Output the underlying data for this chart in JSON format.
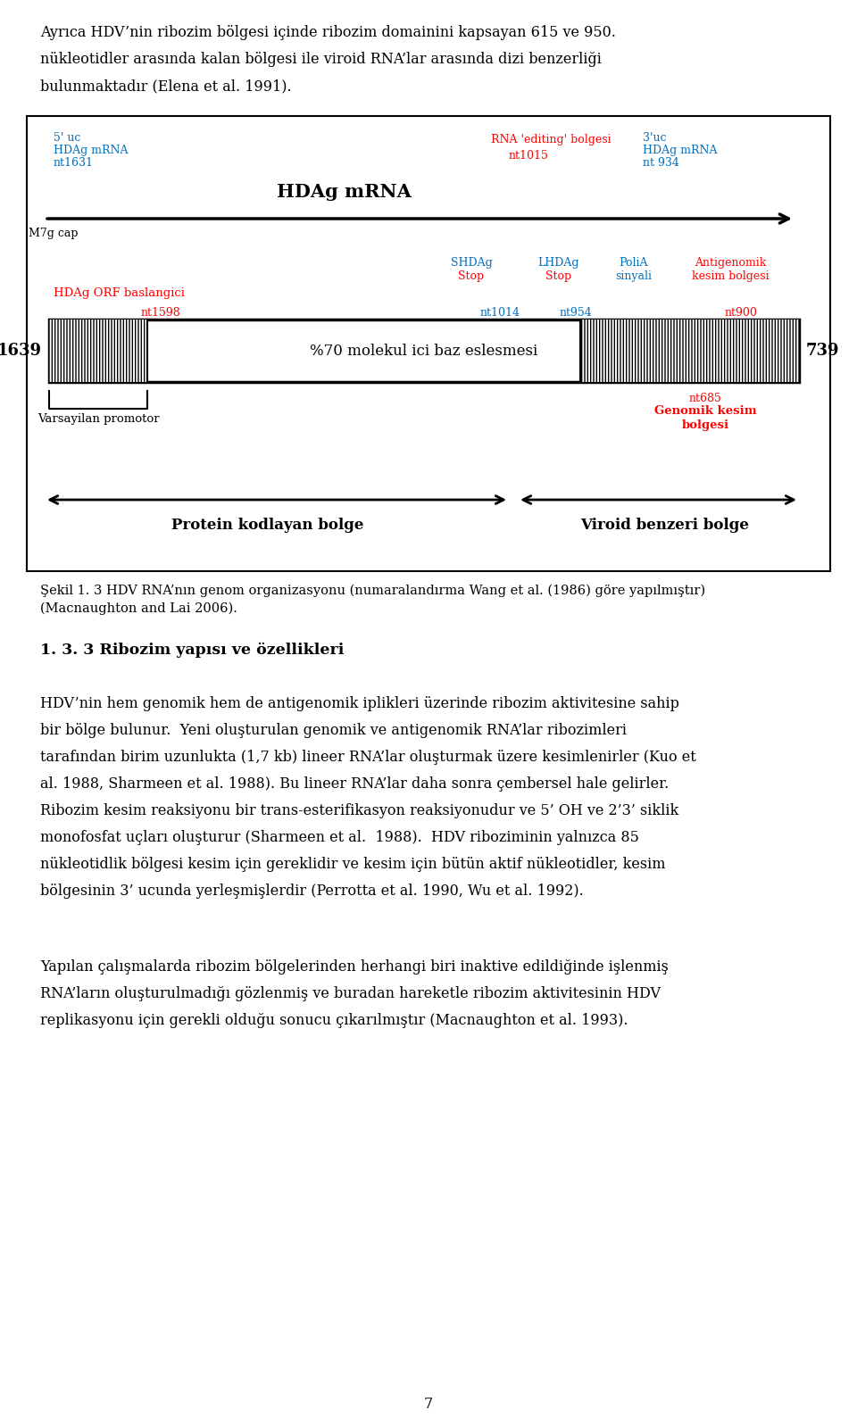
{
  "page_bg": "#ffffff",
  "figsize": [
    9.6,
    15.9
  ],
  "dpi": 100,
  "color_red": "#ff0000",
  "color_blue": "#0070c0",
  "color_black": "#000000",
  "para1_lines": [
    "Ayrıca HDV’nin ribozim bölgesi içinde ribozim domainini kapsayan 615 ve 950.",
    "nükleotidler arasında kalan bölgesi ile viroid RNA’lar arasında dizi benzerliği",
    "bulunmaktadır (Elena et al. 1991)."
  ],
  "sekil_caption": "Şekil 1. 3 HDV RNA’nın genom organizasyonu (numaralandırma Wang et al. (1986) göre yapılmıştır)\n(Macnaughton and Lai 2006).",
  "heading": "1. 3. 3 Ribozim yapısı ve özellikleri",
  "body1_lines": [
    "HDV’nin hem genomik hem de antigenomik iplikleri üzerinde ribozim aktivitesine sahip",
    "bir bölge bulunur.  Yeni oluşturulan genomik ve antigenomik RNA’lar ribozimleri",
    "tarafından birim uzunlukta (1,7 kb) lineer RNA’lar oluşturmak üzere kesimlenirler (Kuo et",
    "al. 1988, Sharmeen et al. 1988). Bu lineer RNA’lar daha sonra çembersel hale gelirler.",
    "Ribozim kesim reaksiyonu bir trans-esterifikasyon reaksiyonudur ve 5’ OH ve 2’3’ siklik",
    "monofosfat uçları oluşturur (Sharmeen et al.  1988).  HDV riboziminin yalnızca 85",
    "nükleotidlik bölgesi kesim için gereklidir ve kesim için bütün aktif nükleotidler, kesim",
    "bölgesinin 3’ ucunda yerleşmişlerdir (Perrotta et al. 1990, Wu et al. 1992)."
  ],
  "body2_lines": [
    "Yapılan çalışmalarda ribozim bölgelerinden herhangi biri inaktive edildiğinde işlenmiş",
    "RNA’ların oluşturulmadığı gözlenmiş ve buradan hareketle ribozim aktivitesinin HDV",
    "replikasyonu için gerekli olduğu sonucu çıkarılmıştır (Macnaughton et al. 1993)."
  ],
  "page_num": "7"
}
